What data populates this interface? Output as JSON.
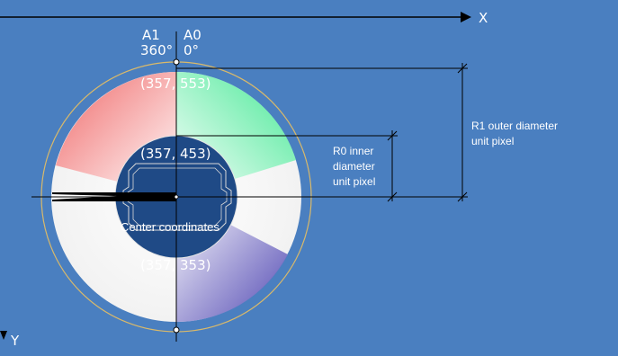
{
  "axes": {
    "x_label": "X",
    "y_label": "Y"
  },
  "angles": {
    "a1_label": "A1",
    "a1_value": "360°",
    "a0_label": "A0",
    "a0_value": "0°"
  },
  "points": {
    "top": "(357, 553)",
    "inner_top": "(357, 453)",
    "bottom": "(357, 353)"
  },
  "center_label": "Center coordinates",
  "dimensions": {
    "r0_line1": "R0 inner",
    "r0_line2": "diameter",
    "r0_line3": "unit pixel",
    "r1_line1": "R1 outer diameter",
    "r1_line2": "unit pixel"
  },
  "colors": {
    "background": "#4a7fc0",
    "inner_disc": "#1f4a86",
    "sector_red": "#f06060",
    "sector_green": "#40e890",
    "sector_purple": "#5048b8"
  }
}
